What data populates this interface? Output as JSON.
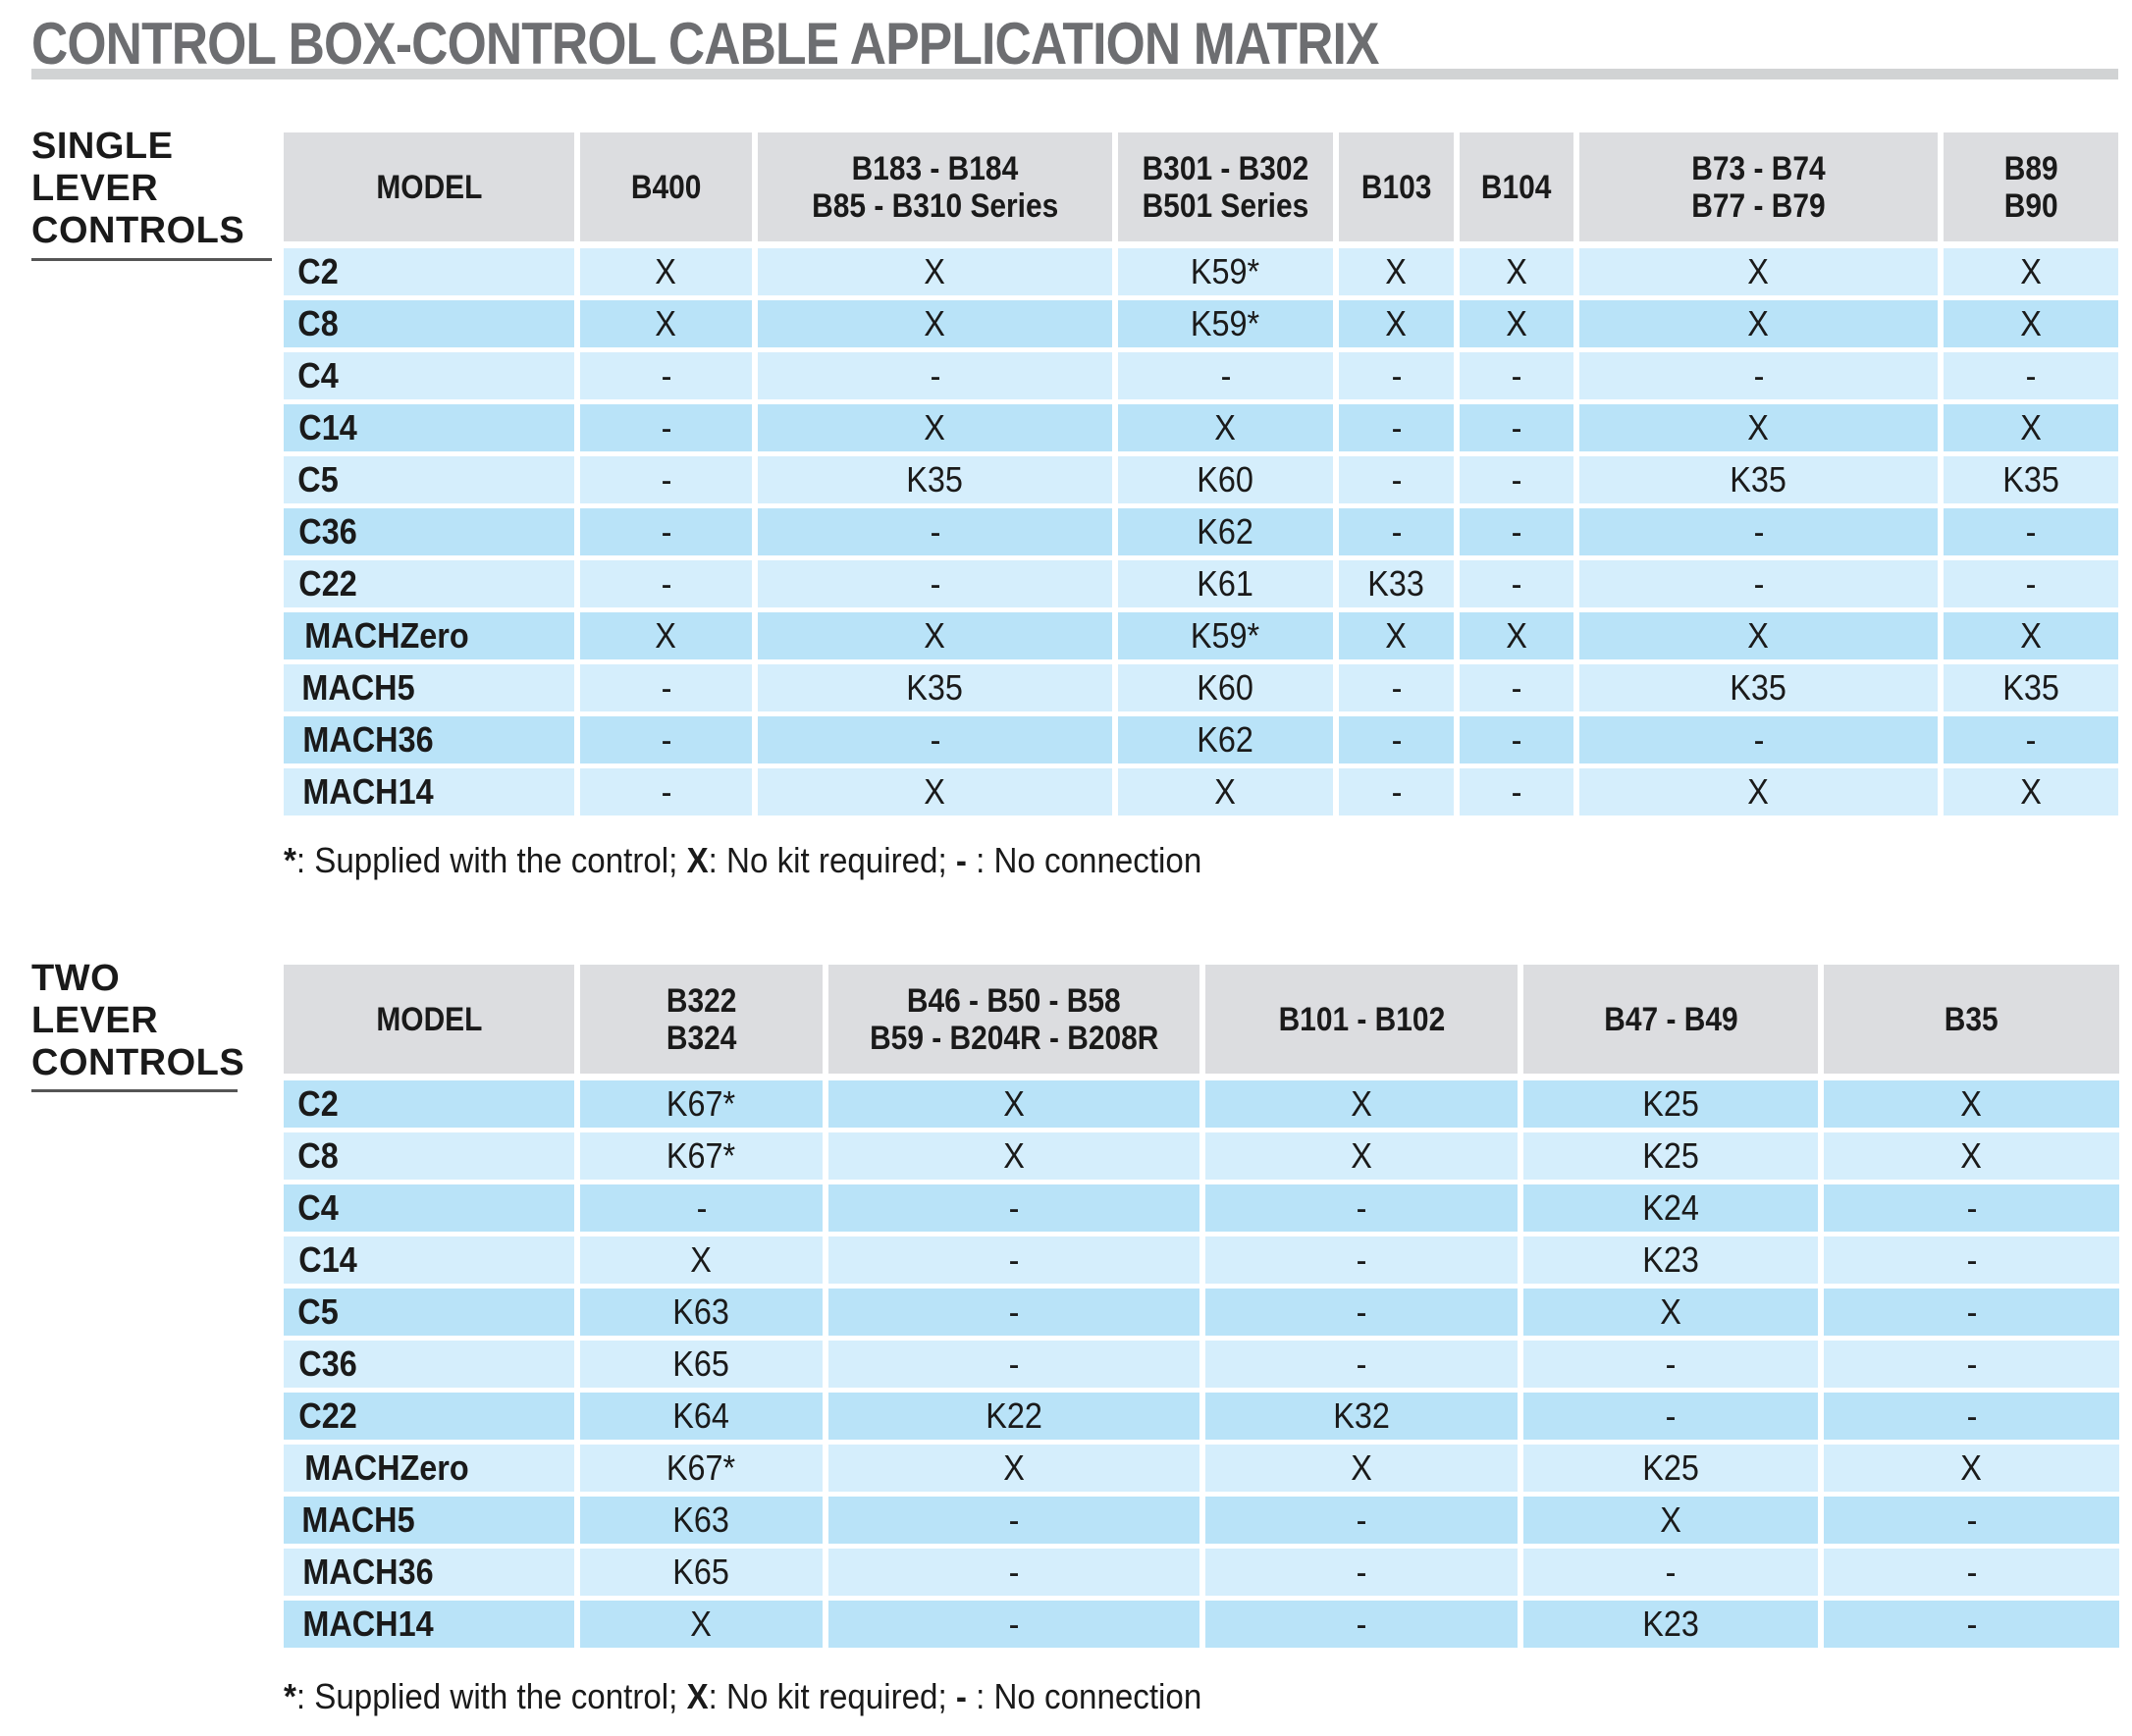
{
  "title": "CONTROL BOX-CONTROL CABLE APPLICATION MATRIX",
  "colors": {
    "title_text": "#6d6e71",
    "title_bar": "#d1d3d4",
    "header_bg": "#dcdde0",
    "row_light": "#d5eefc",
    "row_dark": "#b9e3f8"
  },
  "single_lever": {
    "label_lines": [
      "SINGLE",
      "LEVER",
      "CONTROLS"
    ],
    "columns": [
      [
        "MODEL"
      ],
      [
        "B400"
      ],
      [
        "B183 - B184",
        "B85 - B310 Series"
      ],
      [
        "B301 - B302",
        "B501 Series"
      ],
      [
        "B103"
      ],
      [
        "B104"
      ],
      [
        "B73 - B74",
        "B77 - B79"
      ],
      [
        "B89",
        "B90"
      ]
    ],
    "rows": [
      {
        "model": "C2",
        "cells": [
          "X",
          "X",
          "K59*",
          "X",
          "X",
          "X",
          "X"
        ]
      },
      {
        "model": "C8",
        "cells": [
          "X",
          "X",
          "K59*",
          "X",
          "X",
          "X",
          "X"
        ]
      },
      {
        "model": "C4",
        "cells": [
          "-",
          "-",
          "-",
          "-",
          "-",
          "-",
          "-"
        ]
      },
      {
        "model": "C14",
        "cells": [
          "-",
          "X",
          "X",
          "-",
          "-",
          "X",
          "X"
        ]
      },
      {
        "model": "C5",
        "cells": [
          "-",
          "K35",
          "K60",
          "-",
          "-",
          "K35",
          "K35"
        ]
      },
      {
        "model": "C36",
        "cells": [
          "-",
          "-",
          "K62",
          "-",
          "-",
          "-",
          "-"
        ]
      },
      {
        "model": "C22",
        "cells": [
          "-",
          "-",
          "K61",
          "K33",
          "-",
          "-",
          "-"
        ]
      },
      {
        "model": "MACHZero",
        "cells": [
          "X",
          "X",
          "K59*",
          "X",
          "X",
          "X",
          "X"
        ]
      },
      {
        "model": "MACH5",
        "cells": [
          "-",
          "K35",
          "K60",
          "-",
          "-",
          "K35",
          "K35"
        ]
      },
      {
        "model": "MACH36",
        "cells": [
          "-",
          "-",
          "K62",
          "-",
          "-",
          "-",
          "-"
        ]
      },
      {
        "model": "MACH14",
        "cells": [
          "-",
          "X",
          "X",
          "-",
          "-",
          "X",
          "X"
        ]
      }
    ],
    "footnote": {
      "star": "*",
      "star_text": ": Supplied with the control; ",
      "x": "X",
      "x_text": ": No kit required; ",
      "dash": "-",
      "dash_text": " : No connection"
    }
  },
  "two_lever": {
    "label_lines": [
      "TWO",
      "LEVER",
      "CONTROLS"
    ],
    "columns": [
      [
        "MODEL"
      ],
      [
        "B322",
        "B324"
      ],
      [
        "B46 - B50 - B58",
        "B59 - B204R - B208R"
      ],
      [
        "B101 - B102"
      ],
      [
        "B47 - B49"
      ],
      [
        "B35"
      ]
    ],
    "rows": [
      {
        "model": "C2",
        "cells": [
          "K67*",
          "X",
          "X",
          "K25",
          "X"
        ]
      },
      {
        "model": "C8",
        "cells": [
          "K67*",
          "X",
          "X",
          "K25",
          "X"
        ]
      },
      {
        "model": "C4",
        "cells": [
          "-",
          "-",
          "-",
          "K24",
          "-"
        ]
      },
      {
        "model": "C14",
        "cells": [
          "X",
          "-",
          "-",
          "K23",
          "-"
        ]
      },
      {
        "model": "C5",
        "cells": [
          "K63",
          "-",
          "-",
          "X",
          "-"
        ]
      },
      {
        "model": "C36",
        "cells": [
          "K65",
          "-",
          "-",
          "-",
          "-"
        ]
      },
      {
        "model": "C22",
        "cells": [
          "K64",
          "K22",
          "K32",
          "-",
          "-"
        ]
      },
      {
        "model": "MACHZero",
        "cells": [
          "K67*",
          "X",
          "X",
          "K25",
          "X"
        ]
      },
      {
        "model": "MACH5",
        "cells": [
          "K63",
          "-",
          "-",
          "X",
          "-"
        ]
      },
      {
        "model": "MACH36",
        "cells": [
          "K65",
          "-",
          "-",
          "-",
          "-"
        ]
      },
      {
        "model": "MACH14",
        "cells": [
          "X",
          "-",
          "-",
          "K23",
          "-"
        ]
      }
    ],
    "footnote": {
      "star": "*",
      "star_text": ": Supplied with the control; ",
      "x": "X",
      "x_text": ": No kit required; ",
      "dash": "-",
      "dash_text": " : No connection"
    }
  }
}
